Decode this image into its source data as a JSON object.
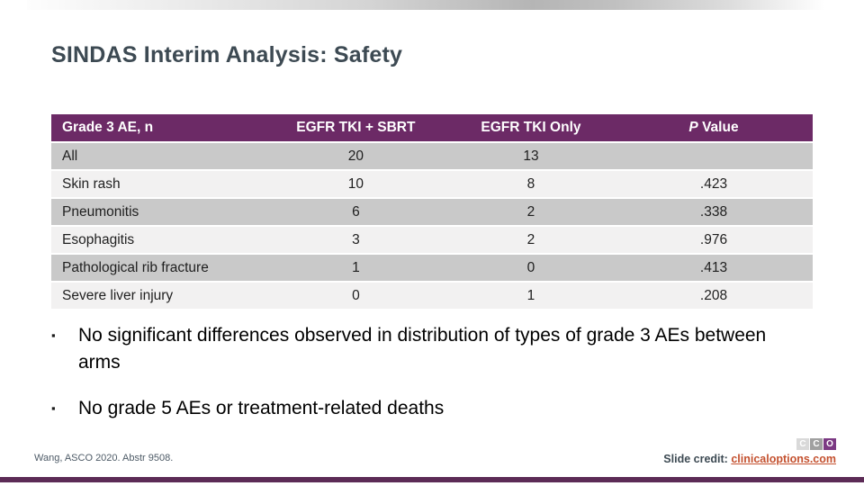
{
  "slide": {
    "title": "SINDAS Interim Analysis: Safety",
    "table": {
      "columns": {
        "col1": "Grade 3 AE, n",
        "col2": "EGFR TKI + SBRT",
        "col3": "EGFR TKI Only"
      },
      "p_header": {
        "italic": "P",
        "rest": " Value"
      },
      "rows": [
        {
          "label": "All",
          "egfr_tki_sbrt": "20",
          "egfr_tki_only": "13",
          "p_value": ""
        },
        {
          "label": "Skin rash",
          "egfr_tki_sbrt": "10",
          "egfr_tki_only": "8",
          "p_value": ".423"
        },
        {
          "label": "Pneumonitis",
          "egfr_tki_sbrt": "6",
          "egfr_tki_only": "2",
          "p_value": ".338"
        },
        {
          "label": "Esophagitis",
          "egfr_tki_sbrt": "3",
          "egfr_tki_only": "2",
          "p_value": ".976"
        },
        {
          "label": "Pathological rib fracture",
          "egfr_tki_sbrt": "1",
          "egfr_tki_only": "0",
          "p_value": ".413"
        },
        {
          "label": "Severe liver injury",
          "egfr_tki_sbrt": "0",
          "egfr_tki_only": "1",
          "p_value": ".208"
        }
      ]
    },
    "bullet_glyph": "▪",
    "bullets": [
      "No significant differences observed in distribution of types of grade 3 AEs between arms",
      "No grade 5 AEs or treatment-related deaths"
    ],
    "footer": {
      "reference": "Wang, ASCO 2020. Abstr 9508.",
      "credit_label": "Slide credit: ",
      "credit_link": "clinicaloptions.com",
      "logo": [
        "C",
        "C",
        "O"
      ]
    },
    "colors": {
      "table_header_bg": "#6C2A66",
      "row_gray": "#C9C9C9",
      "row_light": "#F2F1F1",
      "title_text": "#3D4A53",
      "link_orange": "#C4512F",
      "bottom_bar_purple": "#5C2B56",
      "logo_purple": "#7B3983"
    }
  }
}
